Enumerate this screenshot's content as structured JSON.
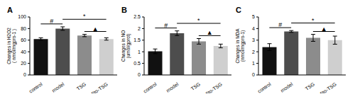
{
  "chart_data": [
    {
      "type": "bar",
      "panel": "A",
      "ylabel": [
        "Changes in H2O2",
        "( nmol/mgpro-1 )"
      ],
      "categories": [
        "control",
        "model",
        "TSG",
        "Mito-TSG"
      ],
      "values": [
        62,
        80,
        68,
        62
      ],
      "errors": [
        2,
        3,
        2,
        2
      ],
      "colors": [
        "#111111",
        "#4d4d4d",
        "#8c8c8c",
        "#cfcfcf"
      ],
      "ylim": [
        0,
        100
      ],
      "yticks": [
        0,
        20,
        40,
        60,
        80,
        100
      ],
      "grid": false,
      "annotations": [
        {
          "text": "#",
          "from": "control",
          "to": "model"
        },
        {
          "text": "*",
          "from": "model",
          "to": "Mito-TSG"
        },
        {
          "text": "▲",
          "from": "TSG",
          "to": "Mito-TSG"
        }
      ]
    },
    {
      "type": "bar",
      "panel": "B",
      "ylabel": [
        "Changes in NO",
        "(umol/gprot)"
      ],
      "categories": [
        "control",
        "model",
        "TSG",
        "Mito-TSG"
      ],
      "values": [
        1.02,
        1.8,
        1.45,
        1.25
      ],
      "errors": [
        0.1,
        0.1,
        0.12,
        0.08
      ],
      "colors": [
        "#111111",
        "#4d4d4d",
        "#8c8c8c",
        "#cfcfcf"
      ],
      "ylim": [
        0,
        2.5
      ],
      "yticks": [
        0,
        0.5,
        1,
        1.5,
        2,
        2.5
      ],
      "grid": false,
      "annotations": [
        {
          "text": "#",
          "from": "control",
          "to": "model"
        },
        {
          "text": "*",
          "from": "model",
          "to": "Mito-TSG"
        },
        {
          "text": "▲",
          "from": "TSG",
          "to": "Mito-TSG"
        }
      ]
    },
    {
      "type": "bar",
      "panel": "C",
      "ylabel": [
        "Changes in MDA",
        "(nmol/mgpro-1)"
      ],
      "categories": [
        "control",
        "model",
        "TSG",
        "Mito-TSG"
      ],
      "values": [
        2.4,
        3.75,
        3.2,
        3.0
      ],
      "errors": [
        0.3,
        0.08,
        0.3,
        0.35
      ],
      "colors": [
        "#111111",
        "#4d4d4d",
        "#8c8c8c",
        "#cfcfcf"
      ],
      "ylim": [
        0,
        5
      ],
      "yticks": [
        0,
        1,
        2,
        3,
        4,
        5
      ],
      "grid": false,
      "annotations": [
        {
          "text": "#",
          "from": "control",
          "to": "model"
        },
        {
          "text": "*",
          "from": "model",
          "to": "Mito-TSG"
        },
        {
          "text": "▲",
          "from": "TSG",
          "to": "Mito-TSG"
        }
      ]
    }
  ]
}
